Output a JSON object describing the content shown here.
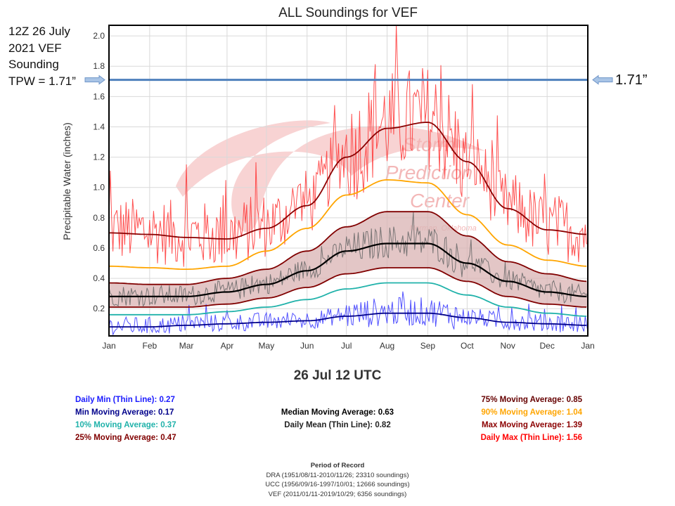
{
  "annotations": {
    "left_lines": [
      "12Z 26 July",
      "2021 VEF",
      "Sounding",
      "TPW = 1.71”"
    ],
    "right_label": "1.71”",
    "tpw_value": 1.71,
    "tpw_line_color": "#4f81bd"
  },
  "chart_data": {
    "type": "line",
    "title": "ALL Soundings for VEF",
    "xlabel": "",
    "ylabel": "Precipitable Water (inches)",
    "ylim": [
      0.02,
      2.07
    ],
    "yticks": [
      0.2,
      0.4,
      0.6,
      0.8,
      1.0,
      1.2,
      1.4,
      1.6,
      1.8,
      2.0
    ],
    "ytick_labels": [
      "0.2",
      "0.4",
      "0.6",
      "0.8",
      "1.0",
      "1.2",
      "1.4",
      "1.6",
      "1.8",
      "2.0"
    ],
    "xlim_days": [
      0,
      365
    ],
    "xticks_days": [
      0,
      31,
      59,
      90,
      120,
      151,
      181,
      212,
      243,
      273,
      304,
      334,
      365
    ],
    "xtick_labels": [
      "Jan",
      "Feb",
      "Mar",
      "Apr",
      "May",
      "Jun",
      "Jul",
      "Aug",
      "Sep",
      "Oct",
      "Nov",
      "Dec",
      "Jan"
    ],
    "grid": true,
    "watermark": [
      "Storm",
      "Prediction",
      "Center",
      "Norman, Oklahoma"
    ],
    "x": [
      0,
      31,
      59,
      90,
      120,
      151,
      181,
      212,
      243,
      273,
      304,
      334,
      365
    ],
    "series": [
      {
        "name": "Max Moving Average",
        "color": "#8b0000",
        "values": [
          0.7,
          0.69,
          0.67,
          0.66,
          0.73,
          0.88,
          1.2,
          1.39,
          1.43,
          1.17,
          0.86,
          0.72,
          0.69
        ]
      },
      {
        "name": "90% Moving Average",
        "color": "#ffa500",
        "values": [
          0.48,
          0.47,
          0.46,
          0.48,
          0.58,
          0.73,
          0.95,
          1.05,
          1.03,
          0.82,
          0.62,
          0.52,
          0.48
        ]
      },
      {
        "name": "75% Moving Average",
        "color": "#800000",
        "values": [
          0.37,
          0.36,
          0.36,
          0.4,
          0.46,
          0.58,
          0.74,
          0.84,
          0.84,
          0.68,
          0.51,
          0.43,
          0.38
        ]
      },
      {
        "name": "Median Moving Average",
        "color": "#000000",
        "values": [
          0.28,
          0.28,
          0.28,
          0.31,
          0.36,
          0.45,
          0.58,
          0.63,
          0.63,
          0.5,
          0.38,
          0.31,
          0.28
        ]
      },
      {
        "name": "25% Moving Average",
        "color": "#800000",
        "values": [
          0.21,
          0.21,
          0.21,
          0.23,
          0.27,
          0.34,
          0.43,
          0.47,
          0.47,
          0.38,
          0.28,
          0.23,
          0.21
        ]
      },
      {
        "name": "10% Moving Average",
        "color": "#20b2aa",
        "values": [
          0.16,
          0.16,
          0.16,
          0.18,
          0.21,
          0.26,
          0.33,
          0.37,
          0.37,
          0.29,
          0.21,
          0.17,
          0.15
        ]
      },
      {
        "name": "Min Moving Average",
        "color": "#00008b",
        "values": [
          0.08,
          0.08,
          0.09,
          0.1,
          0.11,
          0.12,
          0.15,
          0.17,
          0.17,
          0.14,
          0.11,
          0.1,
          0.09
        ]
      },
      {
        "name": "Daily Max (Thin Line)",
        "color": "#ff3333",
        "thin": true,
        "base": "Max Moving Average",
        "spread": 0.22
      },
      {
        "name": "Daily Mean (Thin Line)",
        "color": "#666666",
        "thin": true,
        "base": "Median Moving Average",
        "spread": 0.07
      },
      {
        "name": "Daily Min (Thin Line)",
        "color": "#3333ff",
        "thin": true,
        "base": "Min Moving Average",
        "spread": 0.06
      }
    ],
    "band": {
      "upper": "75% Moving Average",
      "lower": "25% Moving Average",
      "fill": "#d9b3b3"
    }
  },
  "selected_time": "26 Jul 12 UTC",
  "legend": {
    "left": [
      {
        "text": "Daily Min (Thin Line): 0.27",
        "color": "#1a1aff"
      },
      {
        "text": "Min Moving Average: 0.17",
        "color": "#00008b"
      },
      {
        "text": "10% Moving Average: 0.37",
        "color": "#20b2aa"
      },
      {
        "text": "25% Moving Average: 0.47",
        "color": "#800000"
      }
    ],
    "middle": [
      {
        "text": "Median Moving Average: 0.63",
        "color": "#000000"
      },
      {
        "text": "Daily Mean (Thin Line): 0.82",
        "color": "#222222"
      }
    ],
    "right": [
      {
        "text": "75% Moving Average: 0.85",
        "color": "#660000"
      },
      {
        "text": "90% Moving Average: 1.04",
        "color": "#ffa500"
      },
      {
        "text": "Max Moving Average: 1.39",
        "color": "#8b0000"
      },
      {
        "text": "Daily Max (Thin Line): 1.56",
        "color": "#ff0000"
      }
    ]
  },
  "period_of_record": {
    "title": "Period of Record",
    "lines": [
      "DRA (1951/08/11-2010/11/26; 23310 soundings)",
      "UCC (1956/09/16-1997/10/01; 12666 soundings)",
      "VEF (2011/01/11-2019/10/29; 6356 soundings)"
    ]
  }
}
